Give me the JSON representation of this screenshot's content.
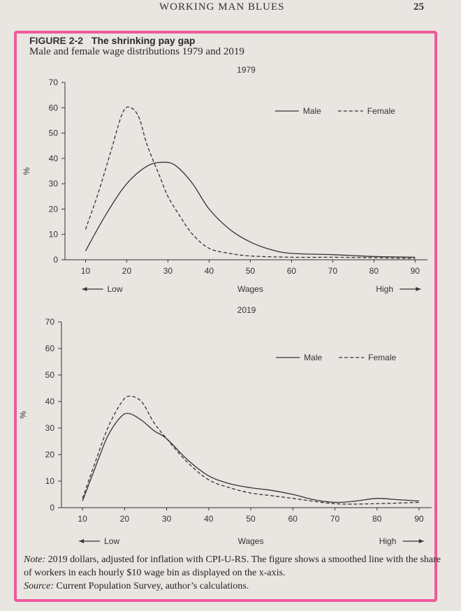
{
  "page": {
    "running_head": "WORKING MAN BLUES",
    "page_number": "25"
  },
  "figure": {
    "label": "FIGURE 2-2",
    "title": "The shrinking pay gap",
    "subtitle": "Male and female wage distributions 1979 and 2019"
  },
  "colors": {
    "ink": "#333333",
    "highlight": "#ef5a9a"
  },
  "chart_data": [
    {
      "type": "line",
      "title": "1979",
      "xlabel": "Wages",
      "ylabel": "%",
      "low_label": "Low",
      "high_label": "High",
      "x": [
        10,
        20,
        30,
        40,
        50,
        60,
        70,
        80,
        90
      ],
      "xlim": [
        5,
        93
      ],
      "ylim": [
        0,
        70
      ],
      "yticks": [
        0,
        10,
        20,
        30,
        40,
        50,
        60,
        70
      ],
      "grid": false,
      "legend_position": "top-right",
      "series": [
        {
          "name": "Male",
          "style": "solid",
          "points": [
            [
              10,
              3.5
            ],
            [
              15,
              18
            ],
            [
              20,
              30
            ],
            [
              25,
              37
            ],
            [
              29,
              38.5
            ],
            [
              32,
              37
            ],
            [
              36,
              30
            ],
            [
              40,
              20
            ],
            [
              45,
              12
            ],
            [
              50,
              7
            ],
            [
              55,
              4
            ],
            [
              60,
              2.5
            ],
            [
              70,
              2
            ],
            [
              80,
              1.3
            ],
            [
              90,
              1
            ]
          ]
        },
        {
          "name": "Female",
          "style": "dashed",
          "points": [
            [
              10,
              12
            ],
            [
              13,
              26
            ],
            [
              16,
              42
            ],
            [
              19,
              58
            ],
            [
              21,
              60
            ],
            [
              23,
              56
            ],
            [
              25,
              45
            ],
            [
              28,
              33
            ],
            [
              30,
              25
            ],
            [
              33,
              17
            ],
            [
              36,
              10
            ],
            [
              40,
              4.5
            ],
            [
              45,
              2.5
            ],
            [
              50,
              1.5
            ],
            [
              60,
              1
            ],
            [
              70,
              1
            ],
            [
              80,
              0.8
            ],
            [
              90,
              0.5
            ]
          ]
        }
      ]
    },
    {
      "type": "line",
      "title": "2019",
      "xlabel": "Wages",
      "ylabel": "%",
      "low_label": "Low",
      "high_label": "High",
      "x": [
        10,
        20,
        30,
        40,
        50,
        60,
        70,
        80,
        90
      ],
      "xlim": [
        5,
        93
      ],
      "ylim": [
        0,
        70
      ],
      "yticks": [
        0,
        10,
        20,
        30,
        40,
        50,
        60,
        70
      ],
      "grid": false,
      "legend_position": "top-right",
      "series": [
        {
          "name": "Male",
          "style": "solid",
          "points": [
            [
              10,
              2.5
            ],
            [
              13,
              15
            ],
            [
              16,
              27
            ],
            [
              19,
              34
            ],
            [
              21,
              35.5
            ],
            [
              24,
              33
            ],
            [
              27,
              29
            ],
            [
              30,
              26
            ],
            [
              35,
              18
            ],
            [
              40,
              12
            ],
            [
              45,
              9
            ],
            [
              50,
              7.5
            ],
            [
              55,
              6.5
            ],
            [
              60,
              5
            ],
            [
              65,
              3
            ],
            [
              70,
              2
            ],
            [
              75,
              2.5
            ],
            [
              80,
              3.5
            ],
            [
              85,
              3
            ],
            [
              90,
              2.5
            ]
          ]
        },
        {
          "name": "Female",
          "style": "dashed",
          "points": [
            [
              10,
              3.5
            ],
            [
              13,
              17
            ],
            [
              16,
              30
            ],
            [
              19,
              39
            ],
            [
              21,
              42
            ],
            [
              24,
              40
            ],
            [
              27,
              32
            ],
            [
              30,
              26
            ],
            [
              35,
              17
            ],
            [
              40,
              10.5
            ],
            [
              45,
              7.5
            ],
            [
              50,
              5.5
            ],
            [
              55,
              4.5
            ],
            [
              60,
              3.5
            ],
            [
              70,
              1.5
            ],
            [
              80,
              1.5
            ],
            [
              90,
              2
            ]
          ]
        }
      ]
    }
  ],
  "note": {
    "note_label": "Note:",
    "note_text": "2019 dollars, adjusted for inflation with CPI-U-RS. The figure shows a smoothed line with the share of workers in each hourly $10 wage bin as displayed on the x-axis.",
    "source_label": "Source:",
    "source_text": "Current Population Survey, author’s calculations."
  }
}
